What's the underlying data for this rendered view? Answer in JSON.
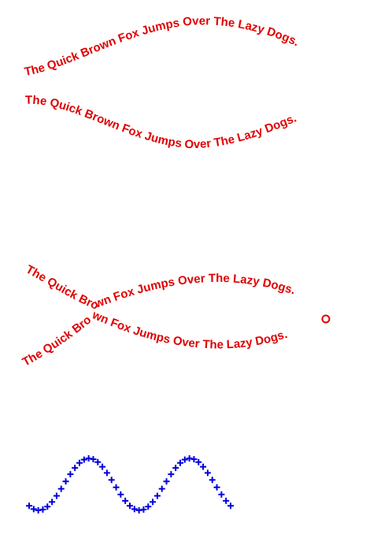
{
  "phrase": "The Quick Brown Fox Jumps Over The Lazy Dogs.",
  "colors": {
    "text": "#e00000",
    "markers": "#0000dd",
    "background": "#ffffff"
  },
  "marker_symbol": "plus"
}
